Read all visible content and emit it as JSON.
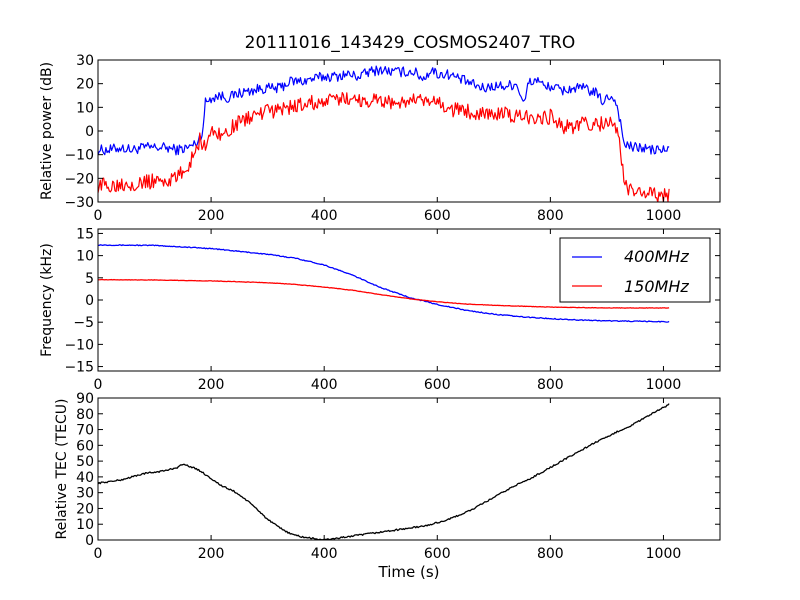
{
  "title": "20111016_143429_COSMOS2407_TRO",
  "colors": {
    "blue": "#0000ff",
    "red": "#ff0000",
    "black": "#000000"
  },
  "chart_data": [
    {
      "type": "line",
      "title": "20111016_143429_COSMOS2407_TRO",
      "xlabel": "",
      "ylabel": "Relative power (dB)",
      "xlim": [
        0,
        1100
      ],
      "ylim": [
        -30,
        30
      ],
      "xticks": [
        "0",
        "200",
        "400",
        "600",
        "800",
        "1000"
      ],
      "yticks": [
        "30",
        "20",
        "10",
        "0",
        "−10",
        "−20",
        "−30"
      ],
      "series": [
        {
          "color": "#0000ff",
          "x": [
            0,
            20,
            40,
            60,
            80,
            100,
            120,
            140,
            160,
            175,
            185,
            190,
            200,
            215,
            230,
            250,
            270,
            290,
            300,
            320,
            340,
            360,
            380,
            400,
            420,
            440,
            460,
            480,
            500,
            520,
            540,
            560,
            575,
            590,
            600,
            620,
            640,
            660,
            680,
            700,
            720,
            740,
            755,
            760,
            770,
            780,
            790,
            800,
            820,
            840,
            860,
            880,
            895,
            900,
            910,
            920,
            925,
            930,
            935,
            945,
            960,
            980,
            1000,
            1010
          ],
          "y": [
            -8,
            -8,
            -7,
            -8,
            -7,
            -7,
            -7,
            -8,
            -7,
            -5,
            0,
            12,
            14,
            15,
            14,
            16,
            17,
            18,
            18,
            18,
            21,
            21,
            22,
            23,
            23,
            24,
            23,
            25,
            26,
            25,
            25,
            25,
            22,
            26,
            24,
            24,
            22,
            20,
            18,
            19,
            19,
            20,
            11,
            20,
            21,
            22,
            18,
            19,
            17,
            18,
            18,
            16,
            12,
            14,
            15,
            9,
            2,
            -5,
            -6,
            -7,
            -7,
            -8,
            -8,
            -8
          ],
          "noise": 2.2
        },
        {
          "color": "#ff0000",
          "x": [
            0,
            20,
            40,
            60,
            80,
            100,
            120,
            140,
            150,
            160,
            170,
            180,
            190,
            200,
            210,
            220,
            240,
            260,
            280,
            300,
            320,
            340,
            360,
            380,
            400,
            420,
            440,
            460,
            480,
            500,
            520,
            540,
            560,
            580,
            600,
            620,
            640,
            660,
            680,
            700,
            720,
            740,
            760,
            780,
            800,
            820,
            840,
            860,
            880,
            900,
            910,
            915,
            920,
            925,
            930,
            940,
            960,
            980,
            1000,
            1010
          ],
          "y": [
            -23,
            -23,
            -22,
            -22,
            -22,
            -21,
            -21,
            -20,
            -17,
            -15,
            -9,
            -4,
            -6,
            -1,
            0,
            -2,
            2,
            5,
            7,
            8,
            9,
            10,
            11,
            12,
            12,
            13,
            14,
            13,
            13,
            13,
            12,
            12,
            13,
            12,
            12,
            9,
            9,
            8,
            8,
            7,
            7,
            6,
            6,
            6,
            6,
            2,
            2,
            3,
            3,
            3,
            4,
            2,
            -2,
            -10,
            -22,
            -25,
            -26,
            -27,
            -27,
            -27
          ],
          "noise": 3.2
        }
      ]
    },
    {
      "type": "line",
      "xlabel": "",
      "ylabel": "Frequency (kHz)",
      "xlim": [
        0,
        1100
      ],
      "ylim": [
        -16,
        16
      ],
      "xticks": [
        "0",
        "200",
        "400",
        "600",
        "800",
        "1000"
      ],
      "yticks": [
        "15",
        "10",
        "5",
        "0",
        "−5",
        "−10",
        "−15"
      ],
      "legend_position": "upper-right",
      "series": [
        {
          "name": "400MHz",
          "color": "#0000ff",
          "x": [
            0,
            100,
            200,
            300,
            350,
            400,
            450,
            500,
            550,
            600,
            650,
            700,
            750,
            800,
            850,
            900,
            950,
            1010
          ],
          "y": [
            12.4,
            12.3,
            11.6,
            10.3,
            9.4,
            7.9,
            5.6,
            2.8,
            0.6,
            -1.0,
            -2.3,
            -3.2,
            -3.8,
            -4.2,
            -4.5,
            -4.7,
            -4.8,
            -4.9
          ],
          "noise": 0.1
        },
        {
          "name": "150MHz",
          "color": "#ff0000",
          "x": [
            0,
            100,
            200,
            300,
            350,
            400,
            450,
            500,
            550,
            600,
            650,
            700,
            750,
            800,
            850,
            900,
            950,
            1010
          ],
          "y": [
            4.6,
            4.5,
            4.3,
            3.9,
            3.5,
            2.9,
            2.2,
            1.2,
            0.3,
            -0.4,
            -0.9,
            -1.2,
            -1.4,
            -1.6,
            -1.7,
            -1.8,
            -1.8,
            -1.8
          ],
          "noise": 0.05
        }
      ]
    },
    {
      "type": "line",
      "xlabel": "Time (s)",
      "ylabel": "Relative TEC (TECU)",
      "xlim": [
        0,
        1100
      ],
      "ylim": [
        0,
        90
      ],
      "xticks": [
        "0",
        "200",
        "400",
        "600",
        "800",
        "1000"
      ],
      "yticks": [
        "90",
        "80",
        "70",
        "60",
        "50",
        "40",
        "30",
        "20",
        "10",
        "0"
      ],
      "series": [
        {
          "color": "#000000",
          "x": [
            0,
            20,
            40,
            60,
            80,
            100,
            120,
            140,
            150,
            160,
            180,
            200,
            220,
            240,
            260,
            280,
            300,
            320,
            340,
            360,
            380,
            400,
            420,
            440,
            460,
            480,
            500,
            520,
            540,
            560,
            580,
            600,
            620,
            640,
            660,
            680,
            700,
            720,
            740,
            760,
            780,
            800,
            820,
            840,
            860,
            880,
            900,
            920,
            940,
            960,
            980,
            1000,
            1010
          ],
          "y": [
            36,
            37,
            38,
            40,
            42,
            43,
            44,
            46,
            48,
            47,
            44,
            39,
            34,
            31,
            26,
            20,
            13,
            8,
            4,
            2,
            1,
            0,
            1,
            2,
            3,
            4,
            5,
            6,
            7,
            8,
            9,
            11,
            13,
            16,
            19,
            23,
            27,
            31,
            35,
            38,
            42,
            46,
            50,
            54,
            58,
            62,
            65,
            69,
            72,
            76,
            80,
            84,
            86
          ],
          "noise": 0.5
        }
      ]
    }
  ]
}
